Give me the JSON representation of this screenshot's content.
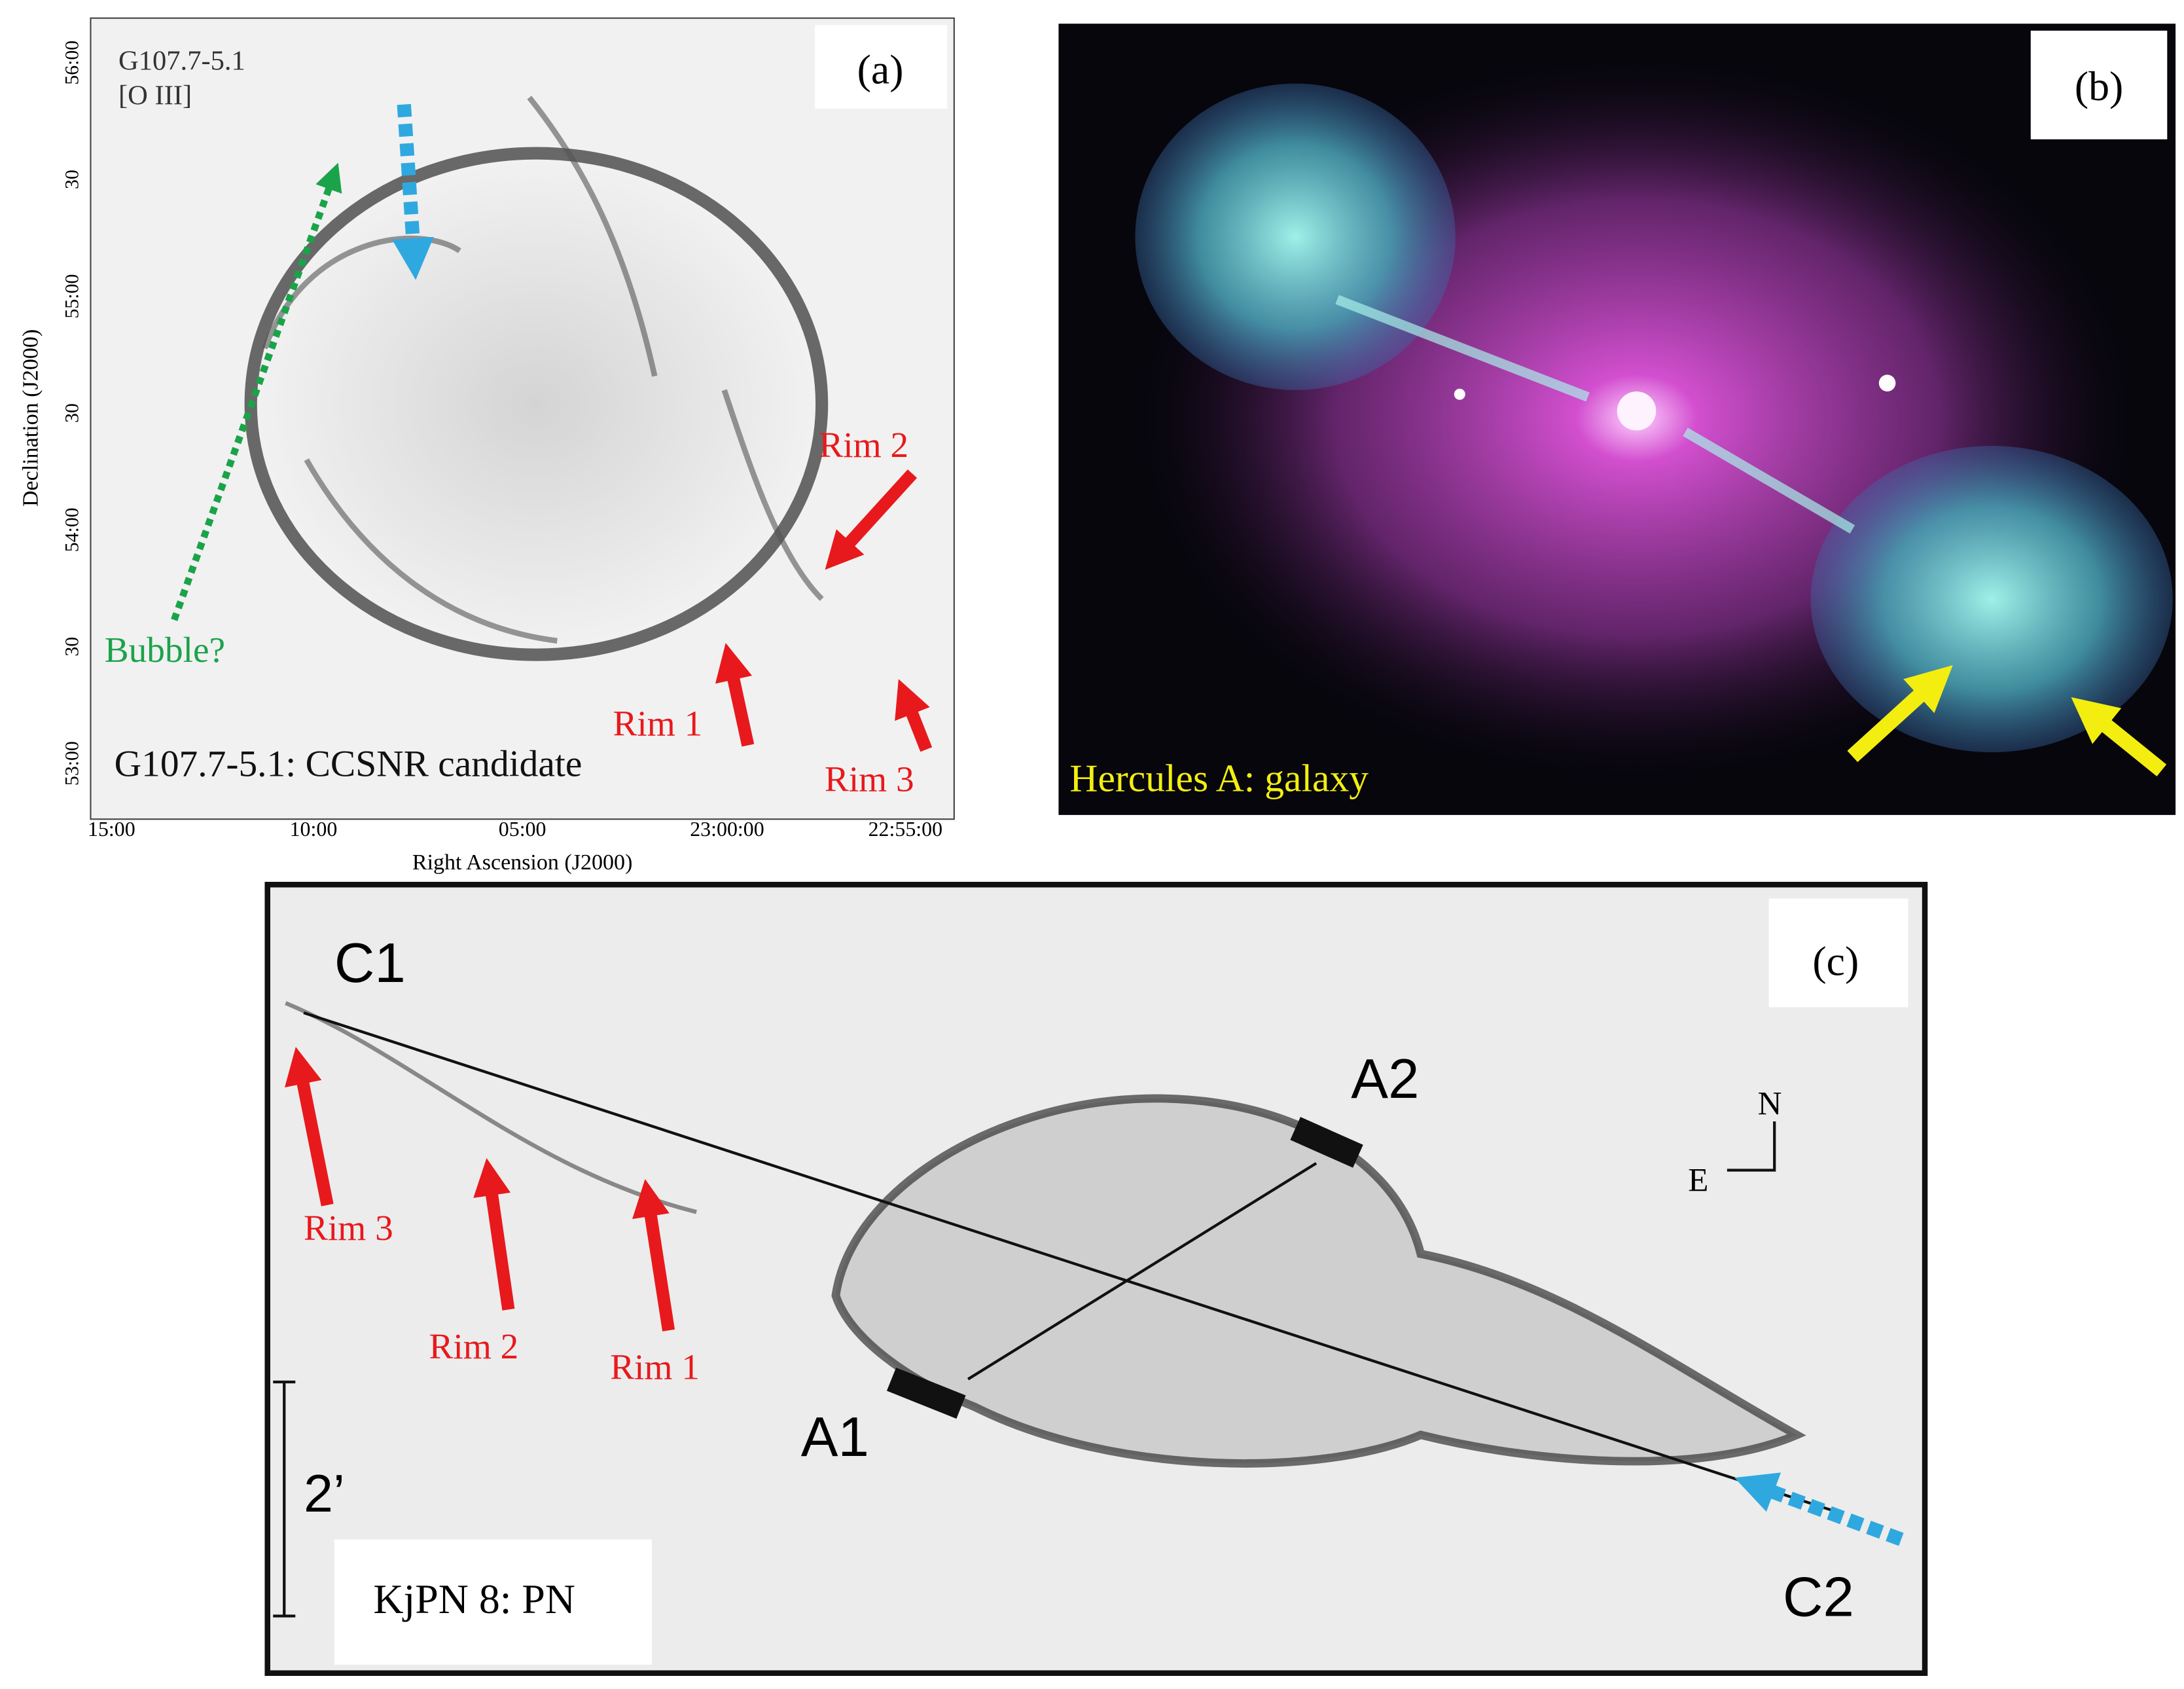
{
  "panels": [
    {
      "label": "(a)",
      "title": "G107.7-5.1",
      "subtitle": "[O III]",
      "caption": "G107.7-5.1: CCSNR candidate",
      "annotations": {
        "bubble": "Bubble?",
        "rim2": "Rim 2",
        "rim1": "Rim 1",
        "rim3": "Rim 3"
      },
      "y_axis_title": "Declination (J2000)",
      "x_axis_title": "Right Ascension (J2000)",
      "y_ticks": [
        "56:00",
        "30",
        "55:00",
        "30",
        "54:00",
        "30",
        "53:00"
      ],
      "x_ticks": [
        "15:00",
        "10:00",
        "05:00",
        "23:00:00",
        "22:55:00"
      ]
    },
    {
      "label": "(b)",
      "caption": "Hercules A: galaxy"
    },
    {
      "label": "(c)",
      "caption": "KjPN 8: PN",
      "annotations": {
        "c1": "C1",
        "a2": "A2",
        "a1": "A1",
        "c2": "C2",
        "rim3": "Rim 3",
        "rim2": "Rim 2",
        "rim1": "Rim 1"
      },
      "scale_bar": "2’",
      "compass": {
        "north": "N",
        "east": "E"
      }
    }
  ]
}
